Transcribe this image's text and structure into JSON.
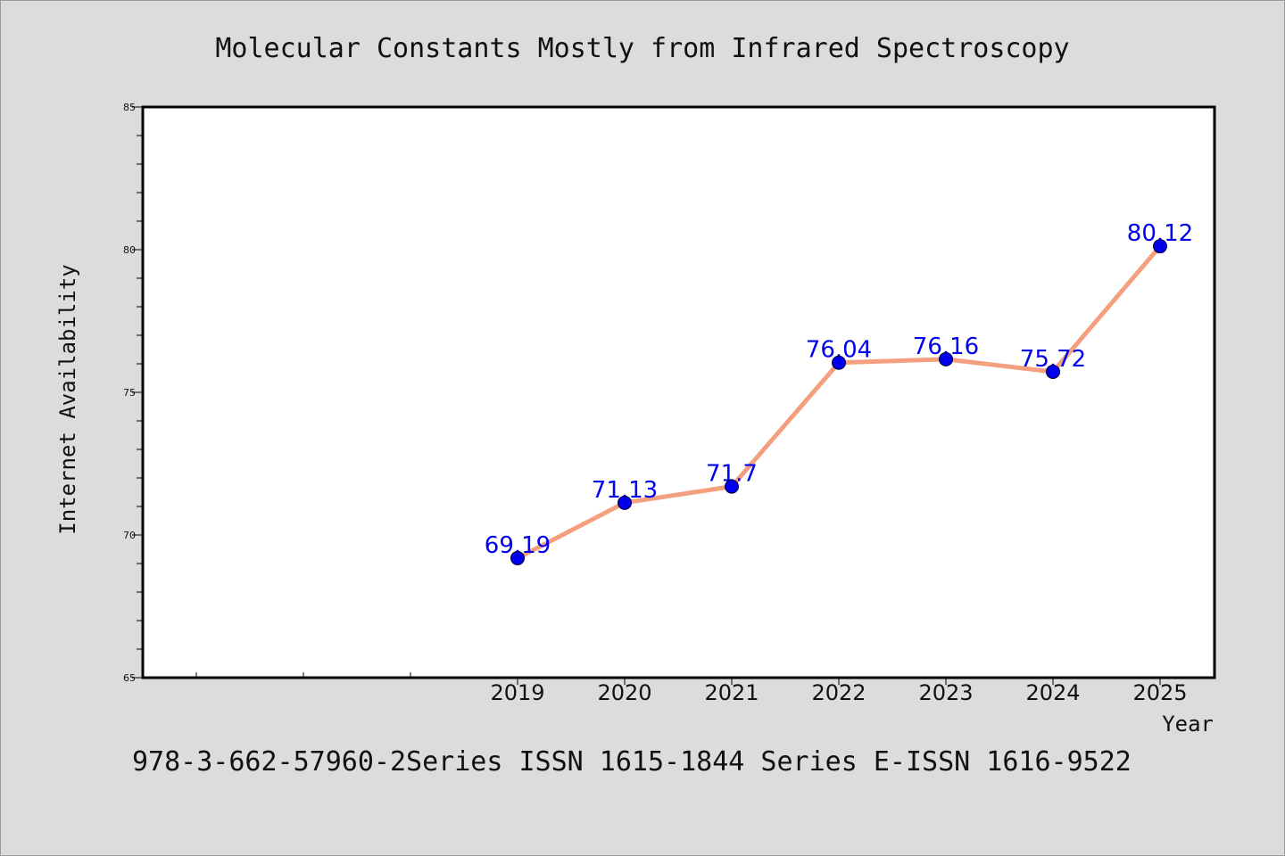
{
  "footer": "978-3-662-57960-2Series ISSN 1615-1844 Series E-ISSN 1616-9522",
  "colors": {
    "background": "#dcdcdc",
    "plot_background": "#ffffff",
    "line": "#f4a07f",
    "marker": "#0000ee",
    "data_label": "#0000ee"
  },
  "chart_data": {
    "type": "line",
    "title": "Molecular Constants Mostly from Infrared Spectroscopy",
    "xlabel": "Year",
    "ylabel": "Internet Availability",
    "x": [
      "2019",
      "2020",
      "2021",
      "2022",
      "2023",
      "2024",
      "2025"
    ],
    "series": [
      {
        "values": [
          69.19,
          71.13,
          71.7,
          76.04,
          76.16,
          75.72,
          80.12
        ],
        "labels": [
          "69.19",
          "71.13",
          "71.7",
          "76.04",
          "76.16",
          "75.72",
          "80.12"
        ]
      }
    ],
    "ylim": [
      65,
      85
    ],
    "yticks": [
      65,
      70,
      75,
      80,
      85
    ],
    "grid": false,
    "legend": "none"
  }
}
